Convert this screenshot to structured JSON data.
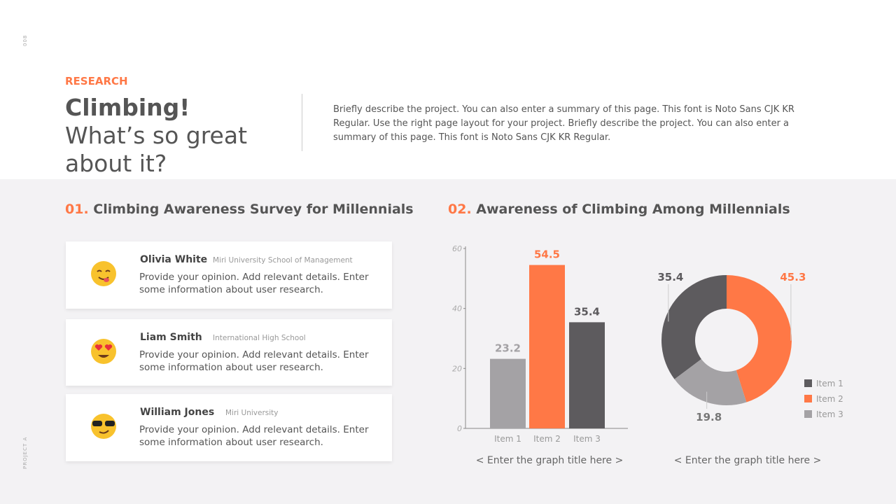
{
  "page_number": "008",
  "footer": "PROJECT A",
  "header": {
    "label": "RESEARCH",
    "title_bold": "Climbing!",
    "title_rest": "What’s so great about it?",
    "description": "Briefly describe the project. You can also enter a summary of this page. This font is Noto Sans CJK KR Regular. Use the right page layout for your project. Briefly describe the project. You can also enter a summary of this page. This font is Noto Sans CJK KR Regular."
  },
  "sections": [
    {
      "number": "01.",
      "title": "Climbing Awareness Survey for Millennials"
    },
    {
      "number": "02.",
      "title": "Awareness of Climbing Among Millennials"
    }
  ],
  "cards": [
    {
      "name": "Olivia White",
      "affiliation": "Miri University School of Management",
      "text": "Provide your opinion. Add relevant details. Enter some information about user research."
    },
    {
      "name": "Liam Smith",
      "affiliation": "International High School",
      "text": "Provide your opinion. Add relevant details. Enter some information about user research."
    },
    {
      "name": "William Jones",
      "affiliation": "Miri University",
      "text": "Provide your opinion. Add relevant details. Enter some information about user research."
    }
  ],
  "chart_data": [
    {
      "type": "bar",
      "title": "< Enter the graph title here >",
      "categories": [
        "Item 1",
        "Item 2",
        "Item 3"
      ],
      "values": [
        23.2,
        54.5,
        35.4
      ],
      "colors": [
        "#a4a2a5",
        "#ff7846",
        "#5d5b5e"
      ],
      "ylim": [
        0,
        60
      ],
      "yticks": [
        0,
        20,
        40,
        60
      ]
    },
    {
      "type": "pie",
      "title": "< Enter the graph title here >",
      "categories": [
        "Item 1",
        "Item 2",
        "Item 3"
      ],
      "values": [
        35.4,
        45.3,
        19.8
      ],
      "colors": [
        "#5d5b5e",
        "#ff7846",
        "#a4a2a5"
      ],
      "donut": true,
      "legend": "right"
    }
  ]
}
